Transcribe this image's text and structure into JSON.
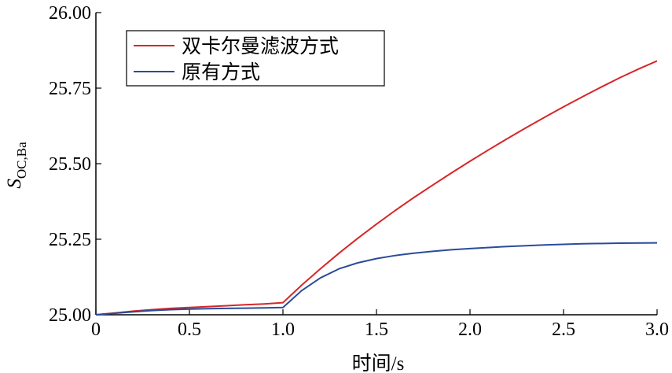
{
  "chart_data": {
    "type": "line",
    "xlabel": "时间/s",
    "ylabel": {
      "main": "S",
      "sub": "OC,Ba"
    },
    "xlim": [
      0,
      3.0
    ],
    "ylim": [
      25.0,
      26.0
    ],
    "xticks": [
      0,
      0.5,
      1.0,
      1.5,
      2.0,
      2.5,
      3.0
    ],
    "xtick_labels": [
      "0",
      "0.5",
      "1.0",
      "1.5",
      "2.0",
      "2.5",
      "3.0"
    ],
    "yticks": [
      25.0,
      25.25,
      25.5,
      25.75,
      26.0
    ],
    "ytick_labels": [
      "25.00",
      "25.25",
      "25.50",
      "25.75",
      "26.00"
    ],
    "grid": false,
    "legend_position": "top-left",
    "series": [
      {
        "name": "双卡尔曼滤波方式",
        "color": "#d62728",
        "x": [
          0,
          0.1,
          0.2,
          0.3,
          0.4,
          0.5,
          0.6,
          0.7,
          0.8,
          0.9,
          1.0,
          1.1,
          1.2,
          1.3,
          1.4,
          1.5,
          1.6,
          1.7,
          1.8,
          1.9,
          2.0,
          2.1,
          2.2,
          2.3,
          2.4,
          2.5,
          2.6,
          2.7,
          2.8,
          2.9,
          3.0
        ],
        "y": [
          25.0,
          25.006,
          25.012,
          25.017,
          25.021,
          25.024,
          25.027,
          25.03,
          25.033,
          25.036,
          25.04,
          25.098,
          25.152,
          25.204,
          25.253,
          25.3,
          25.345,
          25.388,
          25.429,
          25.469,
          25.508,
          25.546,
          25.583,
          25.619,
          25.654,
          25.688,
          25.721,
          25.753,
          25.784,
          25.813,
          25.84
        ]
      },
      {
        "name": "原有方式",
        "color": "#2b4b9b",
        "x": [
          0,
          0.1,
          0.2,
          0.3,
          0.4,
          0.5,
          0.6,
          0.7,
          0.8,
          0.9,
          1.0,
          1.1,
          1.2,
          1.3,
          1.4,
          1.5,
          1.6,
          1.7,
          1.8,
          1.9,
          2.0,
          2.2,
          2.4,
          2.6,
          2.8,
          3.0
        ],
        "y": [
          25.0,
          25.005,
          25.01,
          25.014,
          25.017,
          25.019,
          25.02,
          25.021,
          25.022,
          25.023,
          25.024,
          25.08,
          25.122,
          25.152,
          25.172,
          25.186,
          25.196,
          25.204,
          25.21,
          25.215,
          25.219,
          25.226,
          25.231,
          25.235,
          25.237,
          25.238
        ]
      }
    ]
  }
}
